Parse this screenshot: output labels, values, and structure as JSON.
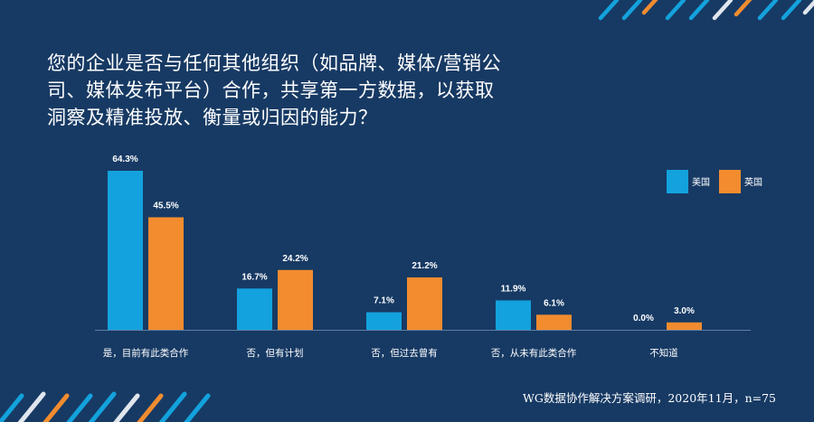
{
  "title_lines": [
    "您的企业是否与任何其他组织（如品牌、媒体/营销公",
    "司、媒体发布平台）合作，共享第一方数据，以获取",
    "洞察及精准投放、衡量或归因的能力？"
  ],
  "source": "WG数据协作解决方案调研，2020年11月，n=75",
  "colors": {
    "background": "#173a64",
    "us": "#13a2dd",
    "uk": "#f28c2f",
    "stripe_light": "#e0e6ee"
  },
  "chart_data": {
    "type": "bar",
    "categories": [
      "是，目前有此类合作",
      "否，但有计划",
      "否，但过去曾有",
      "否，从未有此类合作",
      "不知道"
    ],
    "series": [
      {
        "name": "美国",
        "values": [
          64.3,
          16.7,
          7.1,
          11.9,
          0.0
        ],
        "labels": [
          "64.3%",
          "16.7%",
          "7.1%",
          "11.9%",
          "0.0%"
        ],
        "color": "#13a2dd"
      },
      {
        "name": "英国",
        "values": [
          45.5,
          24.2,
          21.2,
          6.1,
          3.0
        ],
        "labels": [
          "45.5%",
          "24.2%",
          "21.2%",
          "6.1%",
          "3.0%"
        ],
        "color": "#f28c2f"
      }
    ],
    "ylim": [
      0,
      64.3
    ],
    "legend": "top-right",
    "grid": false
  }
}
